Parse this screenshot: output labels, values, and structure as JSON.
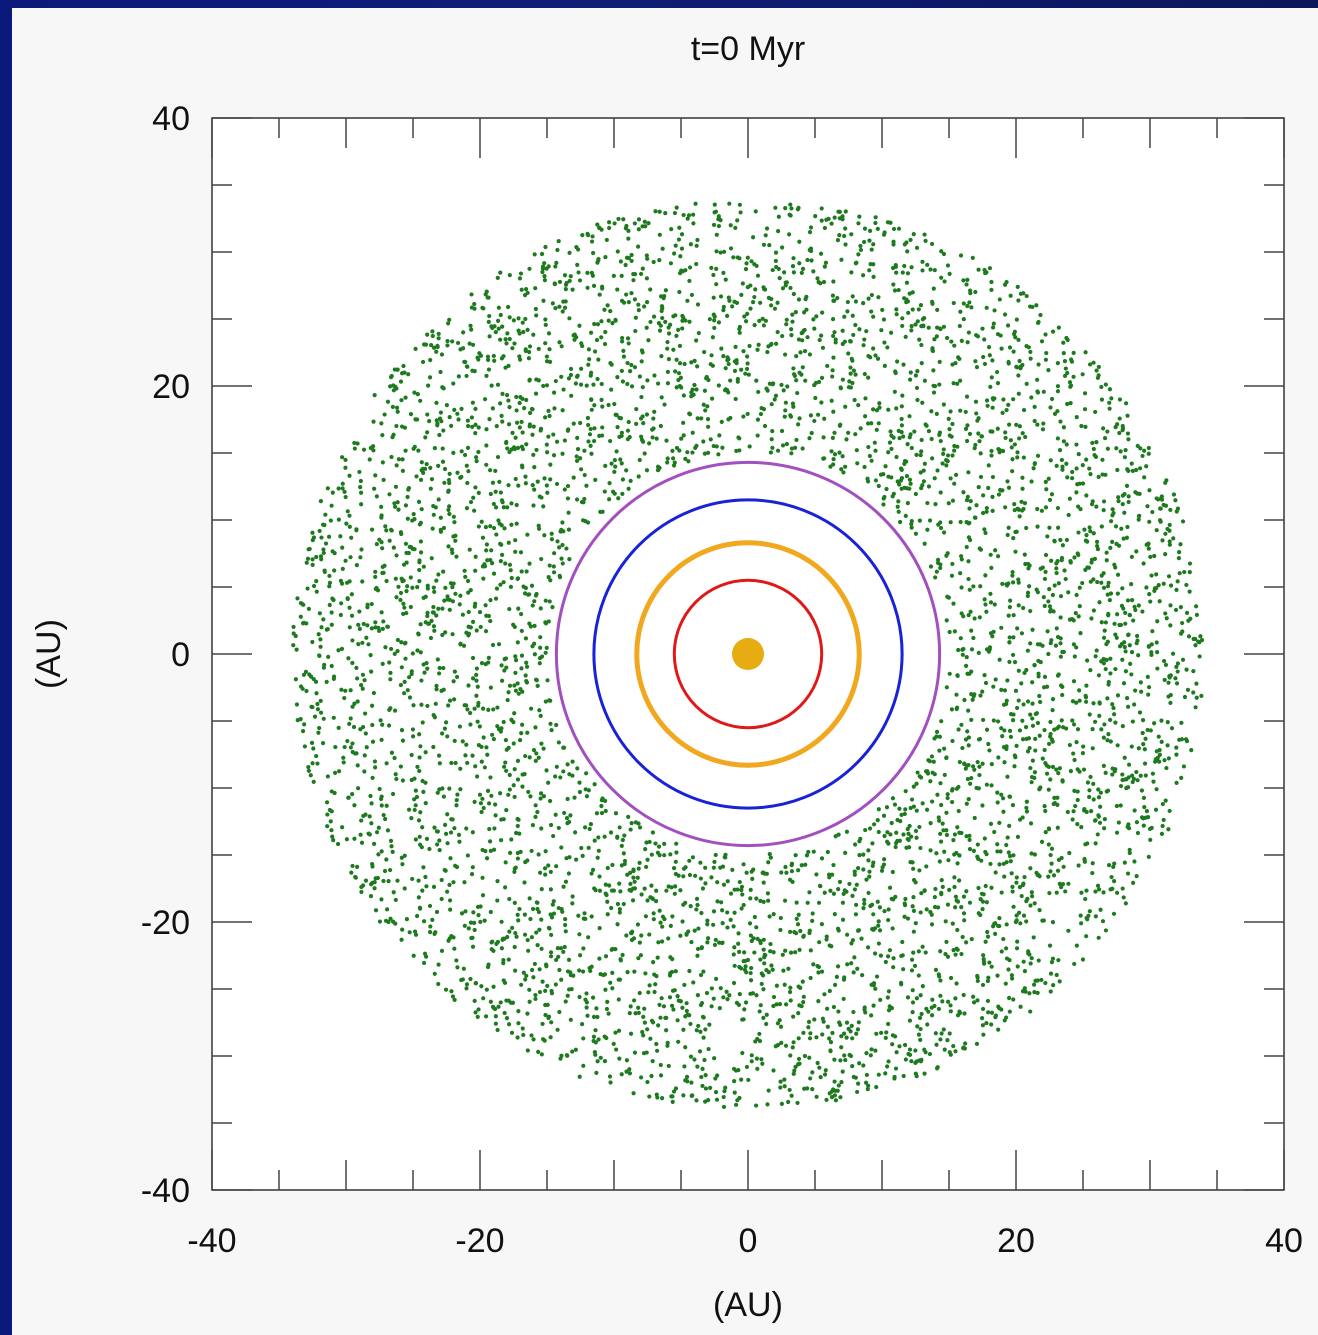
{
  "chart_data": {
    "type": "scatter",
    "title": "t=0 Myr",
    "xlabel": "(AU)",
    "ylabel": "(AU)",
    "xlim": [
      -40,
      40
    ],
    "ylim": [
      -40,
      40
    ],
    "x_ticks": [
      "-40",
      "-20",
      "0",
      "20",
      "40"
    ],
    "y_ticks": [
      "40",
      "20",
      "0",
      "-20",
      "-40"
    ],
    "grid": false,
    "series": [
      {
        "kind": "star",
        "x": 0,
        "y": 0,
        "color": "#e6ac12"
      },
      {
        "kind": "orbit",
        "radius": 5.5,
        "color": "#e01818"
      },
      {
        "kind": "orbit",
        "radius": 8.3,
        "color": "#f2a81e"
      },
      {
        "kind": "orbit",
        "radius": 11.5,
        "color": "#1a22d8"
      },
      {
        "kind": "orbit",
        "radius": 14.3,
        "color": "#a24fbf"
      },
      {
        "kind": "disk",
        "r_inner": 15.0,
        "r_outer": 34.0,
        "color": "#1e7a1e"
      }
    ]
  }
}
